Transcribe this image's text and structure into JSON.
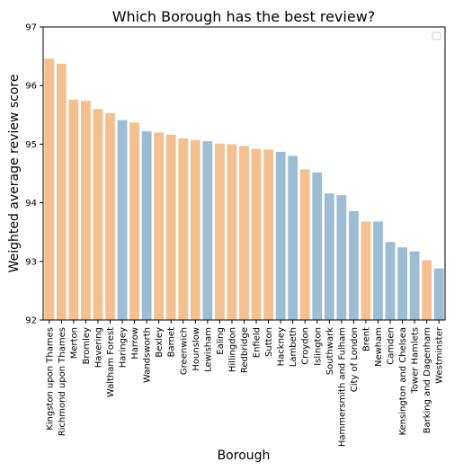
{
  "chart_data": {
    "type": "bar",
    "title": "Which Borough has the best review?",
    "xlabel": "Borough",
    "ylabel": "Weighted average review score",
    "ylim": [
      92,
      97
    ],
    "yticks": [
      "92",
      "93",
      "94",
      "95",
      "96",
      "97"
    ],
    "legend": {
      "placement": "top-right",
      "entries": []
    },
    "grid": false,
    "colors": {
      "orange": "#f4c08f",
      "blue": "#9dbdd4"
    },
    "bars": [
      {
        "category": "Kingston upon Thames",
        "value": 96.46,
        "color": "orange"
      },
      {
        "category": "Richmond upon Thames",
        "value": 96.37,
        "color": "orange"
      },
      {
        "category": "Merton",
        "value": 95.76,
        "color": "orange"
      },
      {
        "category": "Bromley",
        "value": 95.74,
        "color": "orange"
      },
      {
        "category": "Havering",
        "value": 95.6,
        "color": "orange"
      },
      {
        "category": "Waltham Forest",
        "value": 95.53,
        "color": "orange"
      },
      {
        "category": "Haringey",
        "value": 95.41,
        "color": "blue"
      },
      {
        "category": "Harrow",
        "value": 95.37,
        "color": "orange"
      },
      {
        "category": "Wandsworth",
        "value": 95.22,
        "color": "blue"
      },
      {
        "category": "Bexley",
        "value": 95.2,
        "color": "orange"
      },
      {
        "category": "Barnet",
        "value": 95.16,
        "color": "orange"
      },
      {
        "category": "Greenwich",
        "value": 95.1,
        "color": "orange"
      },
      {
        "category": "Hounslow",
        "value": 95.07,
        "color": "orange"
      },
      {
        "category": "Lewisham",
        "value": 95.05,
        "color": "blue"
      },
      {
        "category": "Ealing",
        "value": 95.01,
        "color": "orange"
      },
      {
        "category": "Hillingdon",
        "value": 95.0,
        "color": "orange"
      },
      {
        "category": "Redbridge",
        "value": 94.97,
        "color": "orange"
      },
      {
        "category": "Enfield",
        "value": 94.92,
        "color": "orange"
      },
      {
        "category": "Sutton",
        "value": 94.91,
        "color": "orange"
      },
      {
        "category": "Hackney",
        "value": 94.87,
        "color": "blue"
      },
      {
        "category": "Lambeth",
        "value": 94.8,
        "color": "blue"
      },
      {
        "category": "Croydon",
        "value": 94.57,
        "color": "orange"
      },
      {
        "category": "Islington",
        "value": 94.52,
        "color": "blue"
      },
      {
        "category": "Southwark",
        "value": 94.16,
        "color": "blue"
      },
      {
        "category": "Hammersmith and Fulham",
        "value": 94.13,
        "color": "blue"
      },
      {
        "category": "City of London",
        "value": 93.86,
        "color": "blue"
      },
      {
        "category": "Brent",
        "value": 93.68,
        "color": "orange"
      },
      {
        "category": "Newham",
        "value": 93.68,
        "color": "blue"
      },
      {
        "category": "Camden",
        "value": 93.33,
        "color": "blue"
      },
      {
        "category": "Kensington and Chelsea",
        "value": 93.24,
        "color": "blue"
      },
      {
        "category": "Tower Hamlets",
        "value": 93.17,
        "color": "blue"
      },
      {
        "category": "Barking and Dagenham",
        "value": 93.02,
        "color": "orange"
      },
      {
        "category": "Westminster",
        "value": 92.88,
        "color": "blue"
      }
    ]
  }
}
